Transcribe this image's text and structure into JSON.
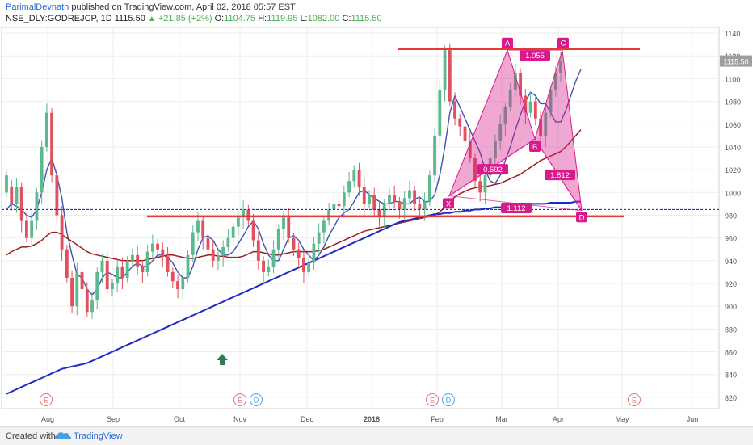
{
  "header": {
    "author": "ParimalDevnath",
    "published_text": "published on TradingView.com, April 02, 2018 05:57 EST",
    "symbol": "NSE_DLY:GODREJCP, 1D",
    "last": "1115.50",
    "change": "+21.85 (+2%)",
    "open_label": "O:",
    "open": "1104.75",
    "high_label": "H:",
    "high": "1119.95",
    "low_label": "L:",
    "low": "1082.00",
    "close_label": "C:",
    "close": "1115.50"
  },
  "footer": {
    "created_with": "Created with",
    "brand": "TradingView"
  },
  "colors": {
    "up": "#5cb88e",
    "down": "#e0505e",
    "ema_fast": "#3f51b5",
    "ma_mid": "#9e1b1b",
    "ma_long": "#1f2bc4",
    "pattern": "#d81b8c",
    "level": "#e53935",
    "price_tag": "#9e9e9e",
    "support_dashed": "#1e2bd6"
  },
  "chart_data": {
    "type": "candlestick",
    "title": "",
    "symbol": "NSE_DLY:GODREJCP",
    "interval": "1D",
    "ylim": [
      810,
      1145
    ],
    "yticks": [
      820,
      840,
      860,
      880,
      900,
      920,
      940,
      960,
      980,
      1000,
      1020,
      1040,
      1060,
      1080,
      1100,
      1120,
      1140
    ],
    "x_ticks": [
      "Aug",
      "Sep",
      "Oct",
      "Nov",
      "Dec",
      "2018",
      "Feb",
      "Mar",
      "Apr",
      "May",
      "Jun"
    ],
    "last_price_tag": "1115.50",
    "grid": true,
    "ohlc_points": [
      [
        1000,
        1015
      ],
      [
        1005,
        990
      ],
      [
        990,
        1005
      ],
      [
        1005,
        975
      ],
      [
        975,
        960
      ],
      [
        960,
        975
      ],
      [
        975,
        1000
      ],
      [
        1000,
        1040
      ],
      [
        1040,
        1070
      ],
      [
        1070,
        1015
      ],
      [
        1015,
        980
      ],
      [
        980,
        950
      ],
      [
        950,
        925
      ],
      [
        925,
        900
      ],
      [
        900,
        930
      ],
      [
        930,
        915
      ],
      [
        915,
        895
      ],
      [
        895,
        905
      ],
      [
        905,
        930
      ],
      [
        930,
        940
      ],
      [
        940,
        915
      ],
      [
        915,
        920
      ],
      [
        920,
        935
      ],
      [
        935,
        925
      ],
      [
        925,
        940
      ],
      [
        940,
        945
      ],
      [
        945,
        935
      ],
      [
        935,
        930
      ],
      [
        930,
        948
      ],
      [
        948,
        955
      ],
      [
        955,
        950
      ],
      [
        950,
        944
      ],
      [
        944,
        930
      ],
      [
        930,
        922
      ],
      [
        922,
        915
      ],
      [
        915,
        925
      ],
      [
        925,
        945
      ],
      [
        945,
        965
      ],
      [
        965,
        975
      ],
      [
        975,
        960
      ],
      [
        960,
        950
      ],
      [
        950,
        940
      ],
      [
        940,
        945
      ],
      [
        945,
        952
      ],
      [
        952,
        960
      ],
      [
        960,
        970
      ],
      [
        970,
        978
      ],
      [
        978,
        985
      ],
      [
        985,
        975
      ],
      [
        975,
        958
      ],
      [
        958,
        940
      ],
      [
        940,
        930
      ],
      [
        930,
        935
      ],
      [
        935,
        950
      ],
      [
        950,
        968
      ],
      [
        968,
        978
      ],
      [
        978,
        960
      ],
      [
        960,
        950
      ],
      [
        950,
        942
      ],
      [
        942,
        930
      ],
      [
        930,
        938
      ],
      [
        938,
        955
      ],
      [
        955,
        965
      ],
      [
        965,
        975
      ],
      [
        975,
        985
      ],
      [
        985,
        990
      ],
      [
        990,
        988
      ],
      [
        988,
        1000
      ],
      [
        1000,
        1010
      ],
      [
        1010,
        1020
      ],
      [
        1020,
        1005
      ],
      [
        1005,
        990
      ],
      [
        990,
        998
      ],
      [
        998,
        985
      ],
      [
        985,
        978
      ],
      [
        978,
        990
      ],
      [
        990,
        998
      ],
      [
        998,
        992
      ],
      [
        992,
        985
      ],
      [
        985,
        995
      ],
      [
        995,
        1002
      ],
      [
        1002,
        990
      ],
      [
        990,
        985
      ],
      [
        985,
        992
      ],
      [
        992,
        1015
      ],
      [
        1015,
        1050
      ],
      [
        1050,
        1090
      ],
      [
        1090,
        1125
      ],
      [
        1125,
        1080
      ],
      [
        1080,
        1065
      ],
      [
        1065,
        1058
      ],
      [
        1058,
        1045
      ],
      [
        1045,
        1030
      ],
      [
        1030,
        1010
      ],
      [
        1010,
        1000
      ],
      [
        1000,
        1015
      ],
      [
        1015,
        1030
      ],
      [
        1030,
        1045
      ],
      [
        1045,
        1060
      ],
      [
        1060,
        1075
      ],
      [
        1075,
        1090
      ],
      [
        1090,
        1105
      ],
      [
        1105,
        1085
      ],
      [
        1085,
        1070
      ],
      [
        1070,
        1080
      ],
      [
        1080,
        1065
      ],
      [
        1065,
        1050
      ],
      [
        1050,
        1070
      ],
      [
        1070,
        1090
      ],
      [
        1090,
        1105
      ],
      [
        1105,
        1115
      ]
    ],
    "series": [
      {
        "name": "",
        "kind": "line",
        "values": [
          985,
          990,
          988,
          985,
          980,
          978,
          985,
          1000,
          1020,
          1030,
          1015,
          995,
          965,
          945,
          928,
          925,
          915,
          910,
          915,
          925,
          930,
          928,
          925,
          925,
          930,
          935,
          938,
          935,
          935,
          940,
          945,
          945,
          943,
          938,
          930,
          925,
          925,
          935,
          950,
          960,
          962,
          958,
          950,
          945,
          945,
          948,
          955,
          962,
          970,
          975,
          968,
          955,
          945,
          940,
          940,
          950,
          960,
          962,
          958,
          950,
          945,
          940,
          945,
          952,
          962,
          970,
          978,
          982,
          985,
          992,
          1000,
          1002,
          998,
          995,
          992,
          990,
          990,
          992,
          992,
          990,
          990,
          994,
          996,
          992,
          992,
          998,
          1015,
          1040,
          1070,
          1085,
          1075,
          1065,
          1055,
          1045,
          1035,
          1020,
          1010,
          1008,
          1015,
          1028,
          1040,
          1055,
          1068,
          1080,
          1088,
          1085,
          1078,
          1078,
          1070,
          1062,
          1062,
          1072,
          1085,
          1098,
          1108
        ]
      },
      {
        "name": "",
        "kind": "line",
        "values": [
          945,
          948,
          950,
          952,
          952,
          953,
          955,
          958,
          962,
          965,
          965,
          963,
          960,
          957,
          954,
          951,
          948,
          946,
          945,
          944,
          943,
          942,
          941,
          940,
          940,
          940,
          940,
          940,
          941,
          942,
          943,
          944,
          945,
          945,
          944,
          943,
          942,
          942,
          943,
          944,
          945,
          945,
          944,
          944,
          943,
          943,
          943,
          944,
          946,
          948,
          948,
          947,
          946,
          945,
          945,
          946,
          947,
          948,
          948,
          948,
          948,
          948,
          949,
          950,
          952,
          954,
          956,
          958,
          960,
          962,
          964,
          966,
          967,
          968,
          969,
          970,
          971,
          972,
          973,
          974,
          975,
          976,
          977,
          978,
          979,
          980,
          983,
          987,
          992,
          996,
          999,
          1001,
          1003,
          1004,
          1005,
          1005,
          1006,
          1007,
          1008,
          1010,
          1012,
          1014,
          1016,
          1019,
          1022,
          1025,
          1028,
          1030,
          1032,
          1034,
          1036,
          1040,
          1045,
          1050,
          1055
        ]
      },
      {
        "name": "",
        "kind": "line",
        "values": [
          823,
          825,
          827,
          829,
          831,
          833,
          835,
          837,
          839,
          841,
          843,
          845,
          846,
          847,
          848,
          849,
          850,
          852,
          854,
          856,
          858,
          860,
          862,
          864,
          866,
          868,
          870,
          872,
          874,
          876,
          878,
          880,
          882,
          884,
          886,
          888,
          890,
          892,
          894,
          896,
          898,
          900,
          902,
          904,
          906,
          908,
          910,
          912,
          914,
          916,
          918,
          920,
          922,
          924,
          926,
          928,
          930,
          932,
          934,
          936,
          938,
          940,
          942,
          944,
          946,
          948,
          950,
          952,
          954,
          956,
          958,
          960,
          962,
          964,
          966,
          968,
          970,
          972,
          974,
          975,
          976,
          977,
          978,
          979,
          980,
          981,
          981,
          982,
          982,
          983,
          983,
          984,
          984,
          985,
          985,
          986,
          986,
          987,
          987,
          988,
          988,
          988,
          989,
          989,
          990,
          990,
          990,
          990,
          991,
          991,
          991,
          991,
          991,
          992,
          992
        ]
      }
    ],
    "annotations": {
      "pattern_labels": [
        "X",
        "A",
        "B",
        "C",
        "D"
      ],
      "ratios": [
        "0.592",
        "1.055",
        "1.812",
        "1.112"
      ],
      "event_markers": [
        "E",
        "E",
        "D",
        "E",
        "D",
        "E"
      ]
    }
  }
}
